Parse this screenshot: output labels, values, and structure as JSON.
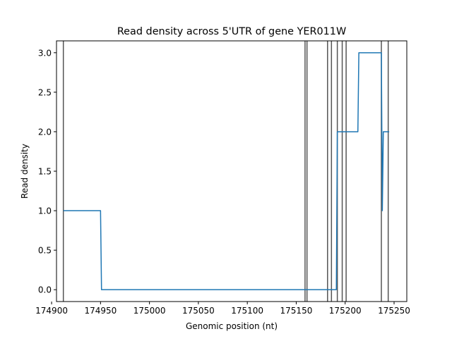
{
  "chart_data": {
    "type": "line",
    "title": "Read density across 5'UTR of gene YER011W",
    "xlabel": "Genomic position (nt)",
    "ylabel": "Read density",
    "xlim": [
      174905,
      175263
    ],
    "ylim": [
      -0.15,
      3.15
    ],
    "grid": false,
    "x_ticks": [
      174900,
      174950,
      175000,
      175050,
      175100,
      175150,
      175200,
      175250
    ],
    "x_tick_labels": [
      "174900",
      "174950",
      "175000",
      "175050",
      "175100",
      "175150",
      "175200",
      "175250"
    ],
    "y_ticks": [
      0.0,
      0.5,
      1.0,
      1.5,
      2.0,
      2.5,
      3.0
    ],
    "y_tick_labels": [
      "0.0",
      "0.5",
      "1.0",
      "1.5",
      "2.0",
      "2.5",
      "3.0"
    ],
    "series": [
      {
        "color": "#1f77b4",
        "x": [
          174912,
          174950,
          174951,
          175191,
          175192,
          175213,
          175214,
          175237,
          175238,
          175239,
          175245
        ],
        "y": [
          1,
          1,
          0,
          0,
          2,
          2,
          3,
          3,
          1,
          2,
          2
        ]
      }
    ],
    "vertical_lines": {
      "color": "#555555",
      "x": [
        174912,
        175159,
        175161,
        175182,
        175186,
        175192,
        175197,
        175201,
        175237,
        175244
      ]
    }
  }
}
